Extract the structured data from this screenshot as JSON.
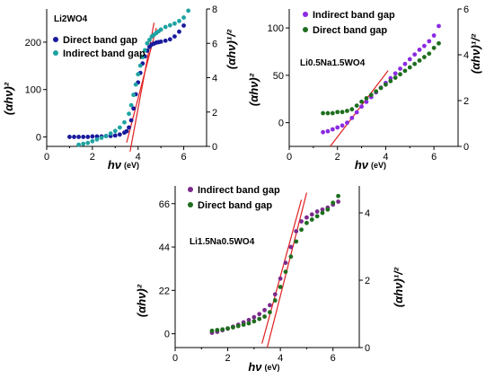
{
  "chart_data": [
    {
      "type": "scatter",
      "title": "Li2WO4",
      "xlabel": "hν",
      "xlabel_unit": "(eV)",
      "ylabel_left": "(αhν)²",
      "ylabel_right": "(αhν)¹/²",
      "xlim": [
        0,
        7
      ],
      "ylim_left": [
        -20,
        270
      ],
      "ylim_right": [
        0,
        8
      ],
      "xticks": [
        "0",
        "2",
        "4",
        "6"
      ],
      "yticks_left": [
        "0",
        "100",
        "200"
      ],
      "yticks_right": [
        "0",
        "2",
        "4",
        "6",
        "8"
      ],
      "legend_position": "left",
      "series": [
        {
          "name": "Direct band gap",
          "axis": "left",
          "color": "#1a1a9c",
          "x": [
            1.0,
            1.2,
            1.4,
            1.6,
            1.8,
            2.0,
            2.2,
            2.4,
            2.6,
            2.8,
            3.0,
            3.2,
            3.4,
            3.5,
            3.6,
            3.7,
            3.8,
            3.9,
            4.0,
            4.1,
            4.2,
            4.3,
            4.4,
            4.5,
            4.6,
            4.7,
            4.8,
            4.9,
            5.0,
            5.2,
            5.4,
            5.6,
            5.8,
            6.0
          ],
          "y": [
            0,
            0,
            0,
            0,
            0,
            1,
            1,
            1,
            2,
            2,
            3,
            5,
            9,
            12,
            20,
            35,
            60,
            90,
            115,
            135,
            155,
            170,
            182,
            190,
            195,
            197,
            199,
            200,
            201,
            203,
            206,
            212,
            222,
            235
          ]
        },
        {
          "name": "Indirect band gap",
          "axis": "right",
          "color": "#1fa3a3",
          "x": [
            1.4,
            1.6,
            1.8,
            2.0,
            2.2,
            2.4,
            2.6,
            2.8,
            3.0,
            3.2,
            3.4,
            3.6,
            3.7,
            3.8,
            3.9,
            4.0,
            4.1,
            4.2,
            4.3,
            4.4,
            4.5,
            4.6,
            4.7,
            4.8,
            4.9,
            5.0,
            5.2,
            5.4,
            5.6,
            5.8,
            6.0,
            6.2
          ],
          "y": [
            0.1,
            0.15,
            0.2,
            0.3,
            0.4,
            0.5,
            0.6,
            0.75,
            0.9,
            1.1,
            1.4,
            1.9,
            2.4,
            3.0,
            3.6,
            4.2,
            4.7,
            5.2,
            5.6,
            6.0,
            6.2,
            6.4,
            6.5,
            6.6,
            6.7,
            6.8,
            6.95,
            7.05,
            7.15,
            7.3,
            7.5,
            7.9
          ]
        }
      ],
      "fit_lines": [
        {
          "axis": "left",
          "x": [
            3.5,
            4.8
          ],
          "y": [
            -12,
            230
          ]
        },
        {
          "axis": "right",
          "x": [
            3.65,
            4.7
          ],
          "y": [
            -0.3,
            7.2
          ]
        }
      ]
    },
    {
      "type": "scatter",
      "title": "Li0.5Na1.5WO4",
      "xlabel": "hν",
      "xlabel_unit": "(eV)",
      "ylabel_left": "(αhν)²",
      "ylabel_right": "(αhν)¹/²",
      "xlim": [
        0,
        7
      ],
      "ylim_left": [
        -25,
        120
      ],
      "ylim_right": [
        0,
        6
      ],
      "xticks": [
        "0",
        "2",
        "4",
        "6"
      ],
      "yticks_left": [
        "0",
        "50",
        "100"
      ],
      "yticks_right": [
        "0",
        "2",
        "4",
        "6"
      ],
      "legend_position": "top-left",
      "series": [
        {
          "name": "Indirect band gap",
          "axis": "left",
          "color": "#8a2be2",
          "x": [
            1.4,
            1.6,
            1.8,
            2.0,
            2.2,
            2.4,
            2.6,
            2.8,
            3.0,
            3.2,
            3.4,
            3.6,
            3.8,
            4.0,
            4.2,
            4.4,
            4.6,
            4.8,
            5.0,
            5.2,
            5.4,
            5.6,
            5.8,
            6.0,
            6.2
          ],
          "y": [
            -10,
            -9,
            -7,
            -5,
            -3,
            0,
            5,
            11,
            17,
            22,
            27,
            32,
            37,
            42,
            47,
            52,
            57,
            62,
            67,
            72,
            77,
            81,
            86,
            92,
            102
          ]
        },
        {
          "name": "Direct band gap",
          "axis": "right",
          "color": "#1e6e1e",
          "x": [
            1.4,
            1.6,
            1.8,
            2.0,
            2.2,
            2.4,
            2.6,
            2.8,
            3.0,
            3.2,
            3.4,
            3.6,
            3.8,
            4.0,
            4.2,
            4.4,
            4.6,
            4.8,
            5.0,
            5.2,
            5.4,
            5.6,
            5.8,
            6.0,
            6.2
          ],
          "y": [
            1.45,
            1.45,
            1.45,
            1.5,
            1.5,
            1.55,
            1.62,
            1.78,
            1.95,
            2.1,
            2.25,
            2.4,
            2.55,
            2.7,
            2.85,
            3.0,
            3.15,
            3.3,
            3.45,
            3.6,
            3.75,
            3.9,
            4.05,
            4.3,
            4.5
          ]
        }
      ],
      "fit_lines": [
        {
          "axis": "left",
          "x": [
            1.7,
            4.1
          ],
          "y": [
            -25,
            55
          ]
        }
      ]
    },
    {
      "type": "scatter",
      "title": "Li1.5Na0.5WO4",
      "xlabel": "hν",
      "xlabel_unit": "(eV)",
      "ylabel_left": "(αhν)²",
      "ylabel_right": "(αhν)¹/²",
      "xlim": [
        0,
        7
      ],
      "ylim_left": [
        -7,
        75
      ],
      "ylim_right": [
        0,
        4.8
      ],
      "xticks": [
        "0",
        "2",
        "4",
        "6"
      ],
      "yticks_left": [
        "0",
        "22",
        "44",
        "66"
      ],
      "yticks_right": [
        "0",
        "2",
        "4"
      ],
      "legend_position": "top-left",
      "series": [
        {
          "name": "Indirect band gap",
          "axis": "left",
          "color": "#7b2a8c",
          "x": [
            1.4,
            1.6,
            1.8,
            2.0,
            2.2,
            2.4,
            2.6,
            2.8,
            3.0,
            3.2,
            3.4,
            3.6,
            3.8,
            4.0,
            4.2,
            4.4,
            4.6,
            4.8,
            5.0,
            5.2,
            5.4,
            5.6,
            5.8,
            6.0,
            6.2
          ],
          "y": [
            0.5,
            1.0,
            1.8,
            2.6,
            3.6,
            4.6,
            5.8,
            7.0,
            8.4,
            10.0,
            12.0,
            14.5,
            20.0,
            28.0,
            36.0,
            44.0,
            52.0,
            57.0,
            59.0,
            60.5,
            62.0,
            63.0,
            64.0,
            65.5,
            67.0
          ]
        },
        {
          "name": "Direct band gap",
          "axis": "right",
          "color": "#1e6e1e",
          "x": [
            1.4,
            1.6,
            1.8,
            2.0,
            2.2,
            2.4,
            2.6,
            2.8,
            3.0,
            3.2,
            3.4,
            3.6,
            3.8,
            4.0,
            4.2,
            4.4,
            4.6,
            4.8,
            5.0,
            5.2,
            5.4,
            5.6,
            5.8,
            6.0,
            6.2
          ],
          "y": [
            0.5,
            0.52,
            0.54,
            0.57,
            0.6,
            0.64,
            0.68,
            0.72,
            0.78,
            0.85,
            0.92,
            1.05,
            1.4,
            1.8,
            2.25,
            2.7,
            3.15,
            3.5,
            3.7,
            3.8,
            3.9,
            4.0,
            4.1,
            4.3,
            4.5
          ]
        }
      ],
      "fit_lines": [
        {
          "axis": "left",
          "x": [
            3.3,
            4.8
          ],
          "y": [
            -5,
            68
          ]
        },
        {
          "axis": "right",
          "x": [
            3.5,
            5.0
          ],
          "y": [
            0,
            4.6
          ]
        }
      ]
    }
  ]
}
